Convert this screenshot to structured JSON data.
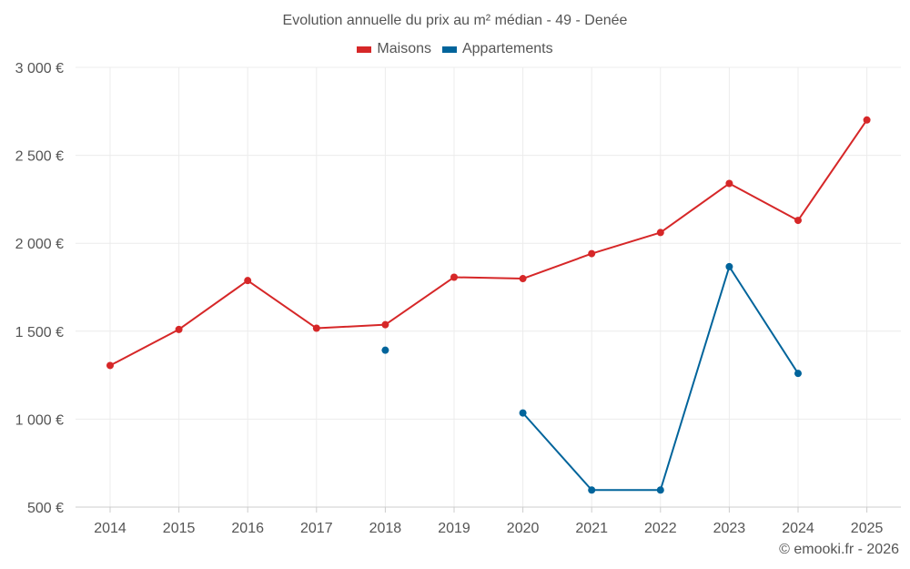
{
  "chart_data": {
    "type": "line",
    "title": "Evolution annuelle du prix au m² médian - 49 - Denée",
    "categories": [
      "2014",
      "2015",
      "2016",
      "2017",
      "2018",
      "2019",
      "2020",
      "2021",
      "2022",
      "2023",
      "2024",
      "2025"
    ],
    "series": [
      {
        "name": "Maisons",
        "color": "#d62728",
        "values": [
          1305,
          1510,
          1788,
          1517,
          1537,
          1807,
          1799,
          1941,
          2061,
          2340,
          2130,
          2701
        ]
      },
      {
        "name": "Appartements",
        "color": "#00649b",
        "values": [
          null,
          null,
          null,
          null,
          1392,
          null,
          1035,
          597,
          597,
          1867,
          1260,
          null
        ]
      }
    ],
    "y_ticks": [
      500,
      1000,
      1500,
      2000,
      2500,
      3000
    ],
    "y_tick_labels": [
      "500 €",
      "1 000 €",
      "1 500 €",
      "2 000 €",
      "2 500 €",
      "3 000 €"
    ],
    "ylim": [
      500,
      3000
    ],
    "xlabel": "",
    "ylabel": "",
    "legend_position": "top-center",
    "grid": true
  },
  "credit": "© emooki.fr - 2026"
}
